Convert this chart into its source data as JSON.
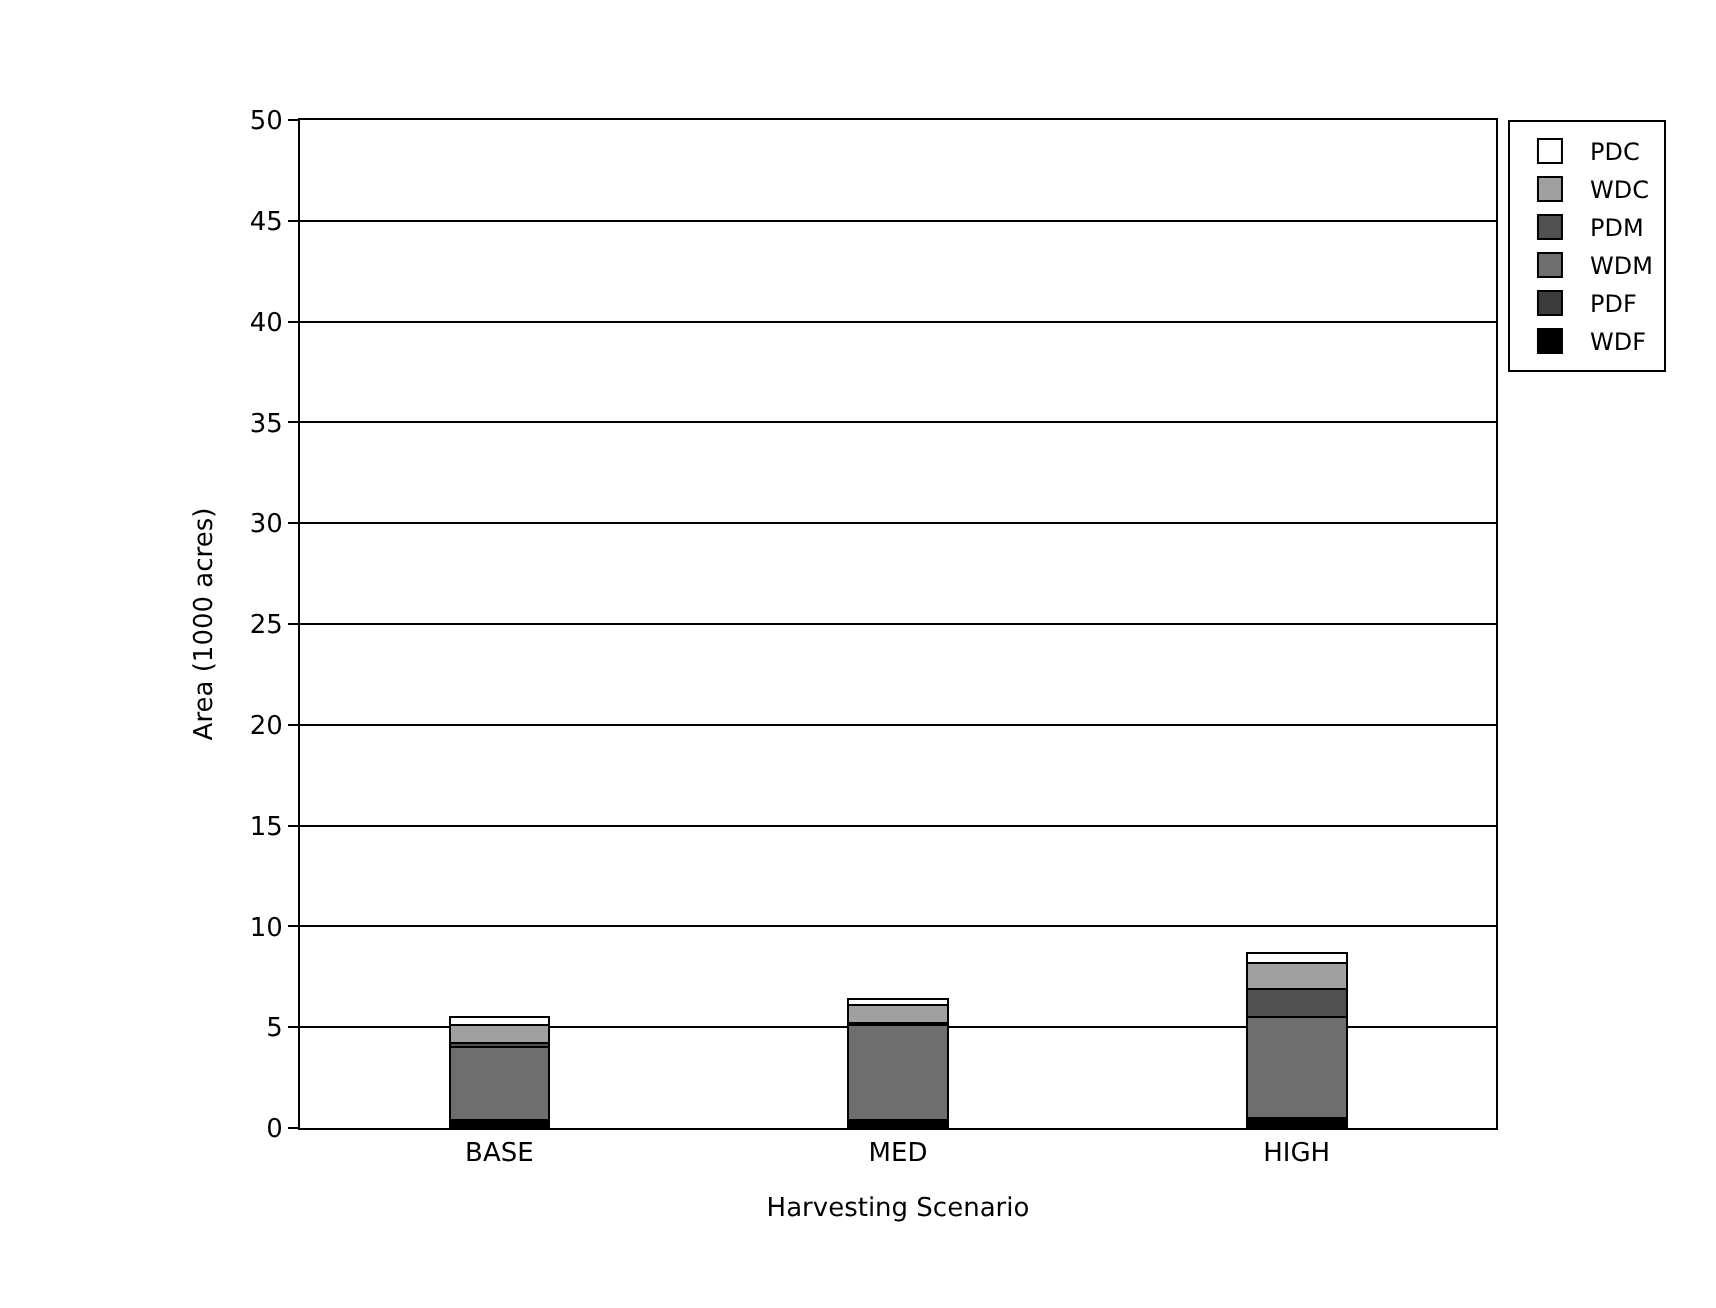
{
  "chart_data": {
    "type": "bar",
    "stacked": true,
    "xlabel": "Harvesting Scenario",
    "ylabel": "Area (1000 acres)",
    "categories": [
      "BASE",
      "MED",
      "HIGH"
    ],
    "series": [
      {
        "name": "WDF",
        "color": "#000000",
        "values": [
          0.3,
          0.3,
          0.4
        ]
      },
      {
        "name": "PDF",
        "color": "#3c3c3c",
        "values": [
          0.1,
          0.1,
          0.1
        ]
      },
      {
        "name": "WDM",
        "color": "#6e6e6e",
        "values": [
          3.6,
          4.7,
          5.0
        ]
      },
      {
        "name": "PDM",
        "color": "#505050",
        "values": [
          0.2,
          0.1,
          1.4
        ]
      },
      {
        "name": "WDC",
        "color": "#a0a0a0",
        "values": [
          0.9,
          0.9,
          1.3
        ]
      },
      {
        "name": "PDC",
        "color": "#ffffff",
        "values": [
          0.4,
          0.3,
          0.5
        ]
      }
    ],
    "ylim": [
      0,
      50
    ],
    "yticks": [
      0,
      5,
      10,
      15,
      20,
      25,
      30,
      35,
      40,
      45,
      50
    ],
    "grid": "y",
    "legend": "right"
  }
}
